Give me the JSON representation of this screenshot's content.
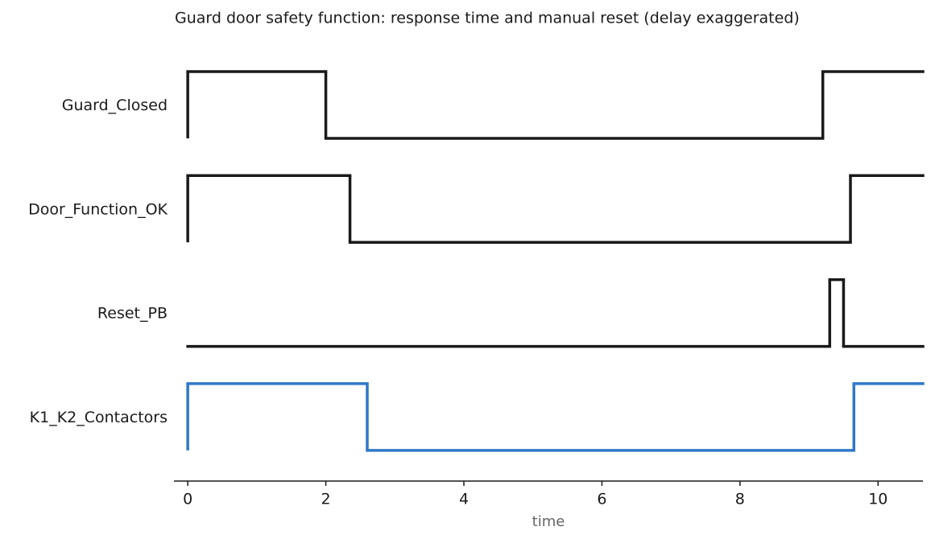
{
  "chart_data": {
    "type": "timing",
    "title": "Guard door safety function: response time and manual reset (delay exaggerated)",
    "xlabel": "time",
    "xlim": [
      -0.2,
      10.65
    ],
    "xticks": [
      0,
      2,
      4,
      6,
      8,
      10
    ],
    "series": [
      {
        "name": "Guard_Closed",
        "color": "#1a1a1a",
        "x": [
          0,
          2,
          9.2
        ],
        "values": [
          1,
          0,
          1
        ]
      },
      {
        "name": "Door_Function_OK",
        "color": "#1a1a1a",
        "x": [
          0,
          2.35,
          9.6
        ],
        "values": [
          1,
          0,
          1
        ]
      },
      {
        "name": "Reset_PB",
        "color": "#1a1a1a",
        "x": [
          0,
          9.3,
          9.5
        ],
        "values": [
          0,
          1,
          0
        ]
      },
      {
        "name": "K1_K2_Contactors",
        "color": "#2f78c8",
        "x": [
          0,
          2.6,
          9.65
        ],
        "values": [
          1,
          0,
          1
        ]
      }
    ]
  }
}
